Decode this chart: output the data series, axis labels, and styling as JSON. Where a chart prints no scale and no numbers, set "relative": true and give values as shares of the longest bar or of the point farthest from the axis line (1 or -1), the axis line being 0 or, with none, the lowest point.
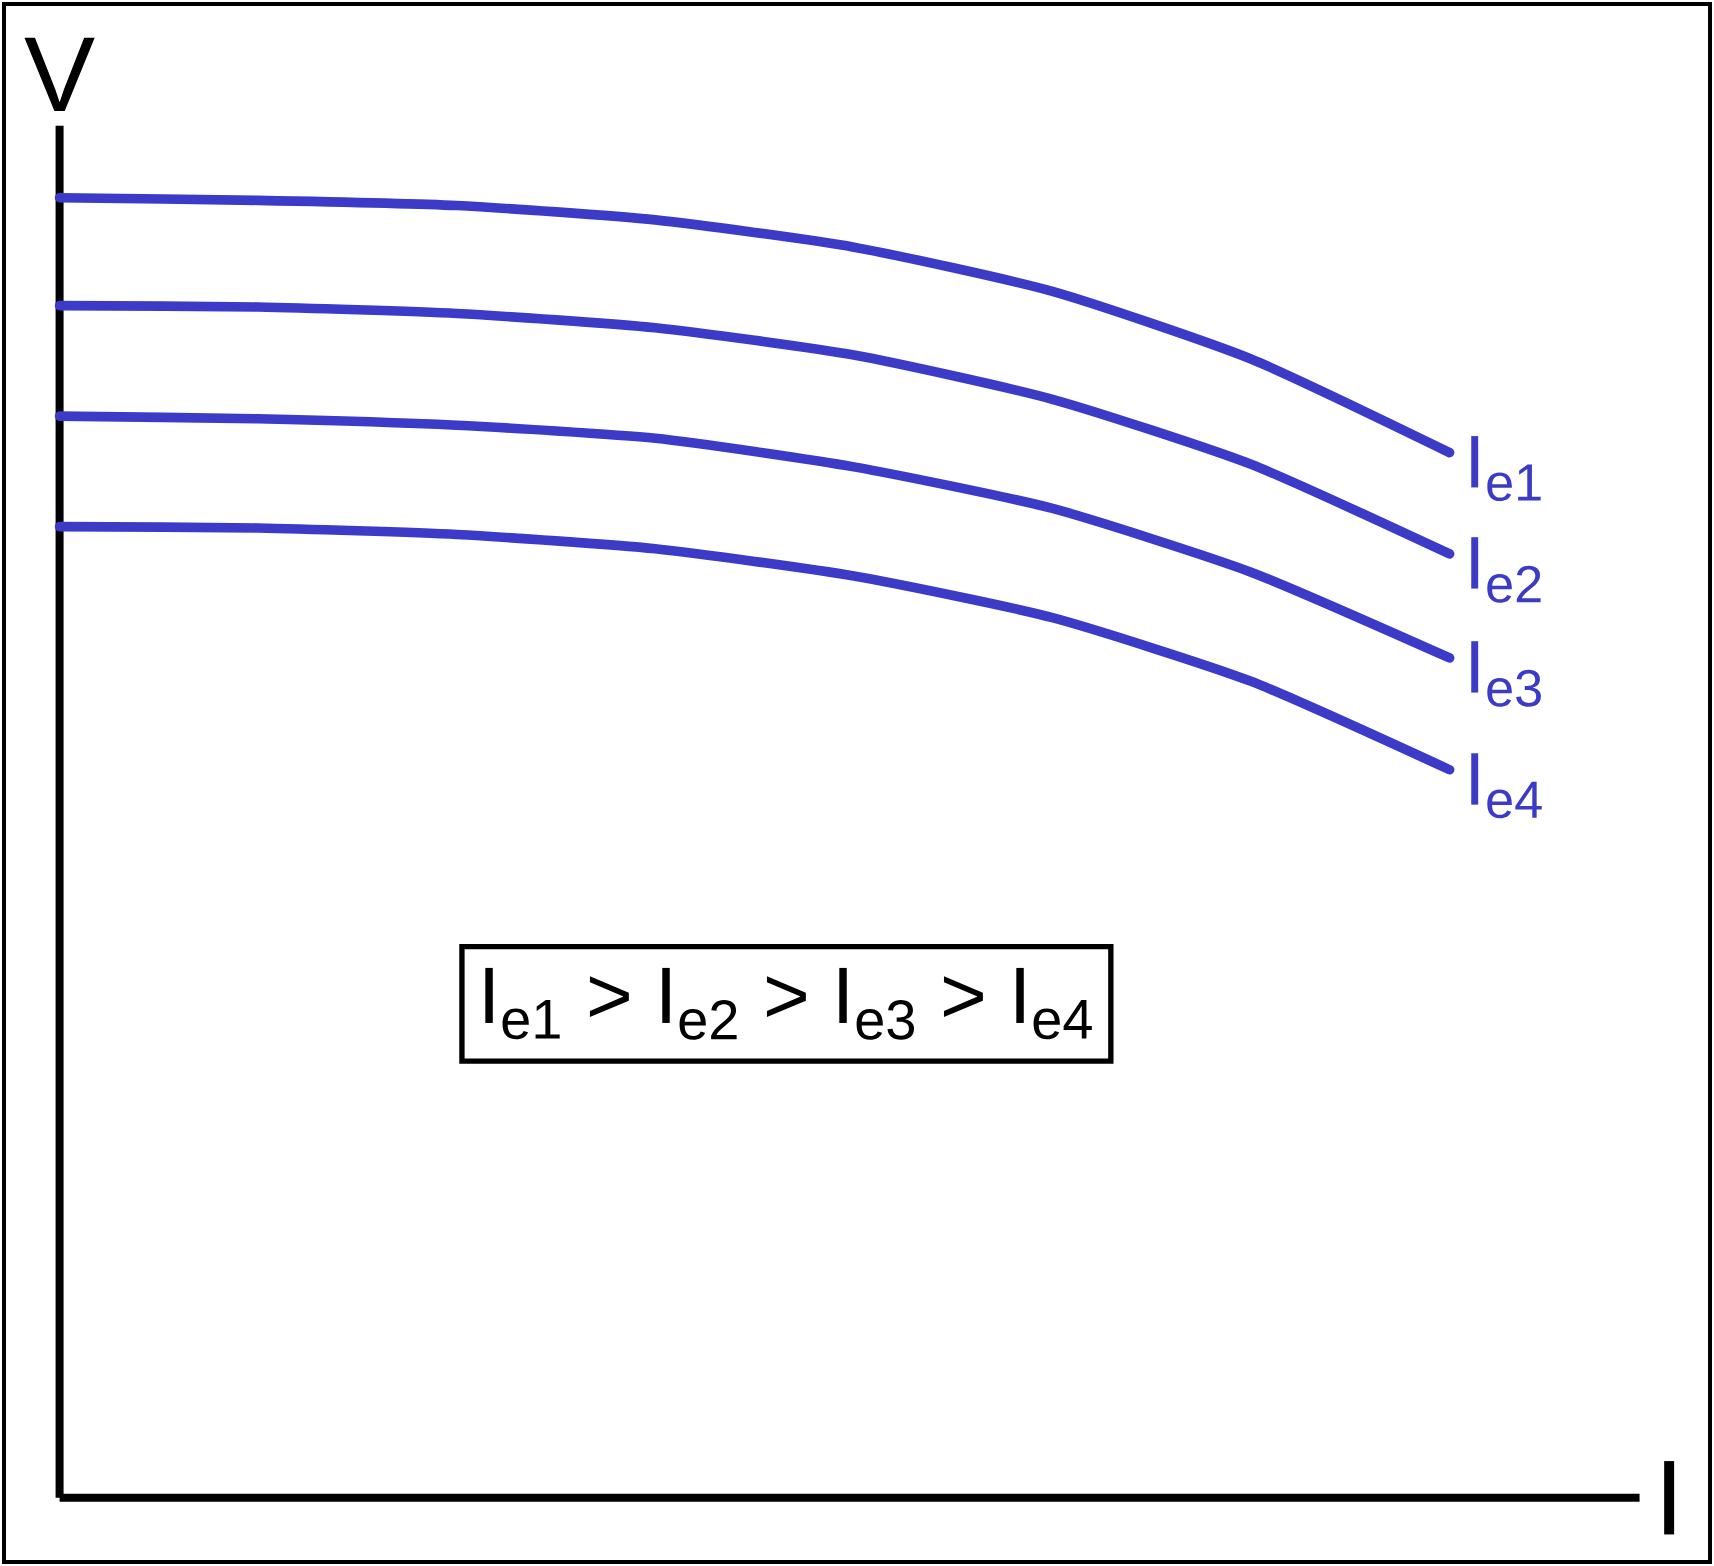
{
  "chart_data": {
    "type": "line",
    "xlabel": "I",
    "ylabel": "V",
    "relative": true,
    "categories": [
      null,
      null,
      null,
      null,
      null,
      null,
      null,
      null
    ],
    "series": [
      {
        "name": "I$_{e1}$",
        "color": "#3b3bc8",
        "values": [
          1,
          0.998,
          0.994,
          0.983,
          0.962,
          0.928,
          0.876,
          0.804
        ]
      },
      {
        "name": "I$_{e2}$",
        "color": "#3b3bc8",
        "values": [
          0.917,
          0.916,
          0.911,
          0.9,
          0.879,
          0.845,
          0.795,
          0.726
        ]
      },
      {
        "name": "I$_{e3}$",
        "color": "#3b3bc8",
        "values": [
          0.832,
          0.83,
          0.825,
          0.815,
          0.793,
          0.761,
          0.712,
          0.646
        ]
      },
      {
        "name": "I$_{e4}$",
        "color": "#3b3bc8",
        "values": [
          0.747,
          0.746,
          0.741,
          0.73,
          0.709,
          0.677,
          0.628,
          0.56
        ]
      }
    ],
    "annotations": [
      "I$_{e1}$ > I$_{e2}$ > I$_{e3}$ > I$_{e4}$"
    ]
  }
}
